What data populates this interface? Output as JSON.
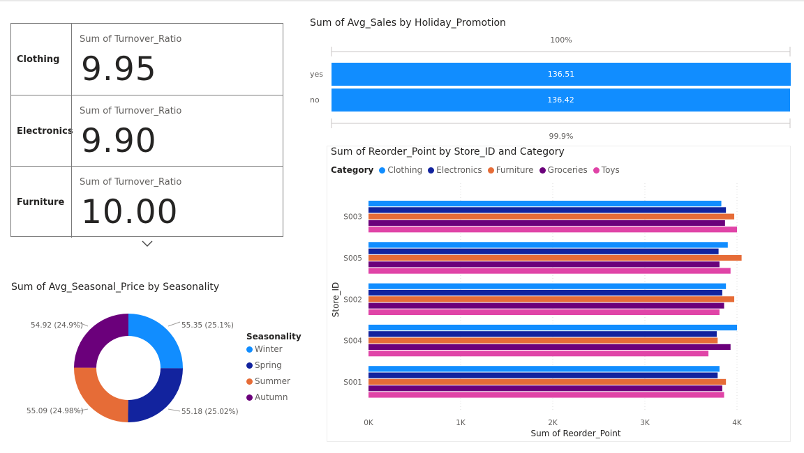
{
  "card": {
    "rows": [
      {
        "category": "Clothing",
        "label": "Sum of Turnover_Ratio",
        "value": "9.95"
      },
      {
        "category": "Electronics",
        "label": "Sum of Turnover_Ratio",
        "value": "9.90"
      },
      {
        "category": "Furniture",
        "label": "Sum of Turnover_Ratio",
        "value": "10.00"
      }
    ]
  },
  "holiday": {
    "title": "Sum of Avg_Sales by Holiday_Promotion",
    "top_label": "100%",
    "bottom_label": "99.9%",
    "bars": [
      {
        "category": "yes",
        "value_label": "136.51"
      },
      {
        "category": "no",
        "value_label": "136.42"
      }
    ]
  },
  "season": {
    "title": "Sum of Avg_Seasonal_Price by Seasonality",
    "legend_title": "Seasonality",
    "slices": [
      {
        "name": "Winter",
        "label": "55.35 (25.1%)",
        "color": "#118dff"
      },
      {
        "name": "Spring",
        "label": "55.18 (25.02%)",
        "color": "#12239e"
      },
      {
        "name": "Summer",
        "label": "55.09 (24.98%)",
        "color": "#e66c37"
      },
      {
        "name": "Autumn",
        "label": "54.92 (24.9%)",
        "color": "#6b007b"
      }
    ]
  },
  "reorder": {
    "title": "Sum of Reorder_Point by Store_ID and Category",
    "legend_title": "Category",
    "y_axis_title": "Store_ID",
    "x_axis_title": "Sum of Reorder_Point",
    "x_ticks": [
      "0K",
      "1K",
      "2K",
      "3K",
      "4K"
    ],
    "categories": [
      "S003",
      "S005",
      "S002",
      "S004",
      "S001"
    ],
    "series": [
      {
        "name": "Clothing",
        "color": "#118dff"
      },
      {
        "name": "Electronics",
        "color": "#12239e"
      },
      {
        "name": "Furniture",
        "color": "#e66c37"
      },
      {
        "name": "Groceries",
        "color": "#6b007b"
      },
      {
        "name": "Toys",
        "color": "#e044a7"
      }
    ]
  },
  "chart_data": [
    {
      "type": "bar",
      "title": "Sum of Avg_Sales by Holiday_Promotion",
      "categories": [
        "yes",
        "no"
      ],
      "values": [
        136.51,
        136.42
      ]
    },
    {
      "type": "pie",
      "title": "Sum of Avg_Seasonal_Price by Seasonality",
      "categories": [
        "Winter",
        "Spring",
        "Summer",
        "Autumn"
      ],
      "values": [
        55.35,
        55.18,
        55.09,
        54.92
      ]
    },
    {
      "type": "bar",
      "title": "Sum of Reorder_Point by Store_ID and Category",
      "xlabel": "Sum of Reorder_Point",
      "ylabel": "Store_ID",
      "xlim": [
        0,
        4500
      ],
      "categories": [
        "S003",
        "S005",
        "S002",
        "S004",
        "S001"
      ],
      "series": [
        {
          "name": "Clothing",
          "values": [
            3830,
            3900,
            3880,
            4000,
            3810
          ]
        },
        {
          "name": "Electronics",
          "values": [
            3880,
            3800,
            3840,
            3780,
            3790
          ]
        },
        {
          "name": "Furniture",
          "values": [
            3970,
            4050,
            3970,
            3790,
            3880
          ]
        },
        {
          "name": "Groceries",
          "values": [
            3870,
            3810,
            3860,
            3930,
            3840
          ]
        },
        {
          "name": "Toys",
          "values": [
            4000,
            3930,
            3810,
            3690,
            3860
          ]
        }
      ]
    }
  ]
}
